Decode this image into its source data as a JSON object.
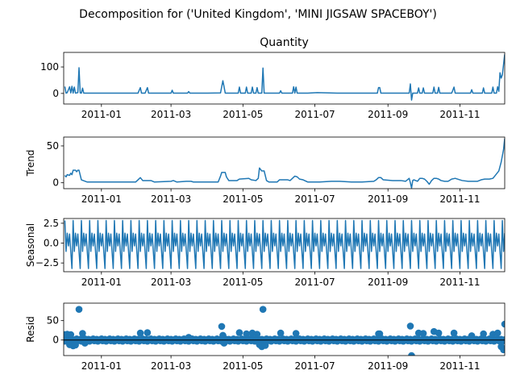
{
  "figure_title": "Decomposition for ('United Kingdom', 'MINI JIGSAW SPACEBOY')",
  "colors": {
    "line": "#1f77b4",
    "marker": "#1f77b4",
    "axis": "#000000",
    "background": "#ffffff",
    "zero_line": "#000000"
  },
  "chart_data": [
    {
      "type": "line",
      "panel": "observed",
      "title": "Quantity",
      "ylabel": "",
      "xlim": [
        "2011-11-30",
        "2011-12-09"
      ],
      "ylim": [
        -40,
        155
      ],
      "yticks": [
        0,
        100
      ],
      "xticks": [
        "2011-01",
        "2011-03",
        "2011-05",
        "2011-07",
        "2011-09",
        "2011-11"
      ],
      "grid": false,
      "points": [
        [
          "2010-12-01",
          26
        ],
        [
          "2010-12-02",
          1
        ],
        [
          "2010-12-03",
          3
        ],
        [
          "2010-12-05",
          25
        ],
        [
          "2010-12-06",
          2
        ],
        [
          "2010-12-07",
          27
        ],
        [
          "2010-12-08",
          1
        ],
        [
          "2010-12-09",
          24
        ],
        [
          "2010-12-10",
          1
        ],
        [
          "2010-12-12",
          3
        ],
        [
          "2010-12-13",
          97
        ],
        [
          "2010-12-14",
          2
        ],
        [
          "2010-12-15",
          1
        ],
        [
          "2010-12-16",
          20
        ],
        [
          "2010-12-17",
          1
        ],
        [
          "2010-12-20",
          1
        ],
        [
          "2011-01-04",
          1
        ],
        [
          "2011-01-10",
          1
        ],
        [
          "2011-01-20",
          1
        ],
        [
          "2011-02-01",
          1
        ],
        [
          "2011-02-03",
          22
        ],
        [
          "2011-02-04",
          1
        ],
        [
          "2011-02-07",
          1
        ],
        [
          "2011-02-09",
          22
        ],
        [
          "2011-02-10",
          1
        ],
        [
          "2011-02-20",
          1
        ],
        [
          "2011-03-01",
          1
        ],
        [
          "2011-03-02",
          12
        ],
        [
          "2011-03-03",
          1
        ],
        [
          "2011-03-15",
          1
        ],
        [
          "2011-03-16",
          7
        ],
        [
          "2011-03-17",
          1
        ],
        [
          "2011-04-01",
          1
        ],
        [
          "2011-04-12",
          2
        ],
        [
          "2011-04-13",
          25
        ],
        [
          "2011-04-14",
          48
        ],
        [
          "2011-04-15",
          25
        ],
        [
          "2011-04-16",
          1
        ],
        [
          "2011-04-20",
          1
        ],
        [
          "2011-04-27",
          1
        ],
        [
          "2011-04-28",
          24
        ],
        [
          "2011-04-29",
          1
        ],
        [
          "2011-05-03",
          1
        ],
        [
          "2011-05-04",
          24
        ],
        [
          "2011-05-05",
          1
        ],
        [
          "2011-05-08",
          1
        ],
        [
          "2011-05-09",
          24
        ],
        [
          "2011-05-10",
          1
        ],
        [
          "2011-05-12",
          1
        ],
        [
          "2011-05-13",
          22
        ],
        [
          "2011-05-14",
          1
        ],
        [
          "2011-05-17",
          1
        ],
        [
          "2011-05-18",
          96
        ],
        [
          "2011-05-19",
          1
        ],
        [
          "2011-05-20",
          1
        ],
        [
          "2011-06-01",
          1
        ],
        [
          "2011-06-02",
          10
        ],
        [
          "2011-06-03",
          1
        ],
        [
          "2011-06-12",
          1
        ],
        [
          "2011-06-13",
          25
        ],
        [
          "2011-06-14",
          1
        ],
        [
          "2011-06-15",
          24
        ],
        [
          "2011-06-16",
          1
        ],
        [
          "2011-06-25",
          1
        ],
        [
          "2011-07-03",
          3
        ],
        [
          "2011-07-20",
          1
        ],
        [
          "2011-08-10",
          1
        ],
        [
          "2011-08-23",
          1
        ],
        [
          "2011-08-24",
          22
        ],
        [
          "2011-08-25",
          22
        ],
        [
          "2011-08-26",
          1
        ],
        [
          "2011-09-10",
          1
        ],
        [
          "2011-09-19",
          1
        ],
        [
          "2011-09-20",
          36
        ],
        [
          "2011-09-21",
          -25
        ],
        [
          "2011-09-22",
          1
        ],
        [
          "2011-09-26",
          1
        ],
        [
          "2011-09-27",
          21
        ],
        [
          "2011-09-28",
          1
        ],
        [
          "2011-09-30",
          1
        ],
        [
          "2011-10-01",
          21
        ],
        [
          "2011-10-02",
          1
        ],
        [
          "2011-10-09",
          1
        ],
        [
          "2011-10-10",
          24
        ],
        [
          "2011-10-11",
          1
        ],
        [
          "2011-10-13",
          1
        ],
        [
          "2011-10-14",
          23
        ],
        [
          "2011-10-15",
          1
        ],
        [
          "2011-10-25",
          1
        ],
        [
          "2011-10-26",
          12
        ],
        [
          "2011-10-27",
          24
        ],
        [
          "2011-10-28",
          1
        ],
        [
          "2011-11-10",
          1
        ],
        [
          "2011-11-11",
          14
        ],
        [
          "2011-11-12",
          1
        ],
        [
          "2011-11-20",
          1
        ],
        [
          "2011-11-21",
          21
        ],
        [
          "2011-11-22",
          1
        ],
        [
          "2011-11-28",
          1
        ],
        [
          "2011-11-29",
          24
        ],
        [
          "2011-11-30",
          1
        ],
        [
          "2011-12-02",
          1
        ],
        [
          "2011-12-03",
          25
        ],
        [
          "2011-12-04",
          8
        ],
        [
          "2011-12-05",
          78
        ],
        [
          "2011-12-06",
          58
        ],
        [
          "2011-12-07",
          70
        ],
        [
          "2011-12-09",
          148
        ]
      ]
    },
    {
      "type": "line",
      "panel": "trend",
      "title": "",
      "ylabel": "Trend",
      "xlim": [
        "2010-11-30",
        "2011-12-09"
      ],
      "ylim": [
        -8,
        62
      ],
      "yticks": [
        0,
        50
      ],
      "xticks": [
        "2011-01",
        "2011-03",
        "2011-05",
        "2011-07",
        "2011-09",
        "2011-11"
      ],
      "grid": false,
      "points": [
        [
          "2010-12-01",
          10
        ],
        [
          "2010-12-02",
          8
        ],
        [
          "2010-12-03",
          11
        ],
        [
          "2010-12-05",
          10
        ],
        [
          "2010-12-06",
          13
        ],
        [
          "2010-12-07",
          11
        ],
        [
          "2010-12-08",
          17
        ],
        [
          "2010-12-10",
          17
        ],
        [
          "2010-12-11",
          15
        ],
        [
          "2010-12-12",
          17
        ],
        [
          "2010-12-13",
          17
        ],
        [
          "2010-12-15",
          4
        ],
        [
          "2010-12-20",
          1
        ],
        [
          "2011-01-30",
          1
        ],
        [
          "2011-02-01",
          4
        ],
        [
          "2011-02-03",
          7
        ],
        [
          "2011-02-05",
          3
        ],
        [
          "2011-02-12",
          3
        ],
        [
          "2011-02-15",
          1
        ],
        [
          "2011-03-01",
          2
        ],
        [
          "2011-03-03",
          3
        ],
        [
          "2011-03-06",
          1
        ],
        [
          "2011-03-14",
          2
        ],
        [
          "2011-03-18",
          2
        ],
        [
          "2011-03-20",
          1
        ],
        [
          "2011-04-10",
          1
        ],
        [
          "2011-04-12",
          9
        ],
        [
          "2011-04-13",
          14
        ],
        [
          "2011-04-16",
          14
        ],
        [
          "2011-04-17",
          8
        ],
        [
          "2011-04-19",
          3
        ],
        [
          "2011-04-26",
          3
        ],
        [
          "2011-04-28",
          5
        ],
        [
          "2011-05-06",
          6
        ],
        [
          "2011-05-08",
          4
        ],
        [
          "2011-05-12",
          3
        ],
        [
          "2011-05-14",
          6
        ],
        [
          "2011-05-15",
          20
        ],
        [
          "2011-05-17",
          16
        ],
        [
          "2011-05-19",
          16
        ],
        [
          "2011-05-21",
          3
        ],
        [
          "2011-05-23",
          1
        ],
        [
          "2011-05-30",
          1
        ],
        [
          "2011-06-01",
          4
        ],
        [
          "2011-06-08",
          4
        ],
        [
          "2011-06-10",
          3
        ],
        [
          "2011-06-12",
          6
        ],
        [
          "2011-06-14",
          9
        ],
        [
          "2011-06-16",
          8
        ],
        [
          "2011-06-18",
          5
        ],
        [
          "2011-06-21",
          4
        ],
        [
          "2011-06-25",
          1
        ],
        [
          "2011-07-05",
          1
        ],
        [
          "2011-07-15",
          2
        ],
        [
          "2011-07-22",
          2
        ],
        [
          "2011-08-01",
          1
        ],
        [
          "2011-08-10",
          1
        ],
        [
          "2011-08-20",
          2
        ],
        [
          "2011-08-22",
          4
        ],
        [
          "2011-08-24",
          7
        ],
        [
          "2011-08-26",
          7
        ],
        [
          "2011-08-28",
          4
        ],
        [
          "2011-09-05",
          3
        ],
        [
          "2011-09-12",
          3
        ],
        [
          "2011-09-16",
          2
        ],
        [
          "2011-09-19",
          6
        ],
        [
          "2011-09-20",
          0
        ],
        [
          "2011-09-21",
          -7
        ],
        [
          "2011-09-22",
          3
        ],
        [
          "2011-09-23",
          4
        ],
        [
          "2011-09-26",
          2
        ],
        [
          "2011-09-28",
          6
        ],
        [
          "2011-09-30",
          6
        ],
        [
          "2011-10-02",
          5
        ],
        [
          "2011-10-04",
          2
        ],
        [
          "2011-10-06",
          -2
        ],
        [
          "2011-10-08",
          3
        ],
        [
          "2011-10-10",
          6
        ],
        [
          "2011-10-12",
          6
        ],
        [
          "2011-10-14",
          5
        ],
        [
          "2011-10-16",
          3
        ],
        [
          "2011-10-19",
          2
        ],
        [
          "2011-10-22",
          2
        ],
        [
          "2011-10-25",
          5
        ],
        [
          "2011-10-28",
          6
        ],
        [
          "2011-11-01",
          4
        ],
        [
          "2011-11-03",
          3
        ],
        [
          "2011-11-08",
          2
        ],
        [
          "2011-11-12",
          2
        ],
        [
          "2011-11-16",
          2
        ],
        [
          "2011-11-19",
          4
        ],
        [
          "2011-11-22",
          5
        ],
        [
          "2011-11-26",
          5
        ],
        [
          "2011-11-29",
          6
        ],
        [
          "2011-12-01",
          10
        ],
        [
          "2011-12-04",
          16
        ],
        [
          "2011-12-06",
          28
        ],
        [
          "2011-12-08",
          45
        ],
        [
          "2011-12-09",
          60
        ]
      ]
    },
    {
      "type": "line",
      "panel": "seasonal",
      "title": "",
      "ylabel": "Seasonal",
      "xlim": [
        "2010-11-30",
        "2011-12-09"
      ],
      "ylim": [
        -3.6,
        3.1
      ],
      "yticks": [
        -2.5,
        0.0,
        2.5
      ],
      "xticks": [
        "2011-01",
        "2011-03",
        "2011-05",
        "2011-07",
        "2011-09",
        "2011-11"
      ],
      "grid": false,
      "period_days": 7,
      "pattern": [
        2.85,
        -1.05,
        1.25,
        -0.35,
        1.15,
        -1.05,
        -3.2
      ]
    },
    {
      "type": "scatter",
      "panel": "resid",
      "title": "",
      "ylabel": "Resid",
      "xlim": [
        "2010-11-30",
        "2011-12-09"
      ],
      "ylim": [
        -40,
        95
      ],
      "yticks": [
        0,
        50
      ],
      "xticks": [
        "2011-01",
        "2011-03",
        "2011-05",
        "2011-07",
        "2011-09",
        "2011-11"
      ],
      "grid": false,
      "zero_line": true,
      "outliers": [
        [
          "2010-12-01",
          14
        ],
        [
          "2010-12-03",
          15
        ],
        [
          "2010-12-05",
          -12
        ],
        [
          "2010-12-06",
          14
        ],
        [
          "2010-12-08",
          -15
        ],
        [
          "2010-12-10",
          -13
        ],
        [
          "2010-12-13",
          79
        ],
        [
          "2010-12-16",
          17
        ],
        [
          "2010-12-18",
          -8
        ],
        [
          "2011-02-03",
          18
        ],
        [
          "2011-02-09",
          19
        ],
        [
          "2011-03-16",
          7
        ],
        [
          "2011-04-13",
          35
        ],
        [
          "2011-04-14",
          12
        ],
        [
          "2011-04-15",
          -8
        ],
        [
          "2011-04-28",
          19
        ],
        [
          "2011-05-04",
          16
        ],
        [
          "2011-05-09",
          18
        ],
        [
          "2011-05-13",
          15
        ],
        [
          "2011-05-15",
          -12
        ],
        [
          "2011-05-17",
          -17
        ],
        [
          "2011-05-18",
          79
        ],
        [
          "2011-05-20",
          -14
        ],
        [
          "2011-06-02",
          18
        ],
        [
          "2011-06-15",
          17
        ],
        [
          "2011-08-24",
          16
        ],
        [
          "2011-08-25",
          16
        ],
        [
          "2011-09-20",
          36
        ],
        [
          "2011-09-21",
          -40
        ],
        [
          "2011-09-27",
          18
        ],
        [
          "2011-10-01",
          17
        ],
        [
          "2011-10-10",
          22
        ],
        [
          "2011-10-14",
          18
        ],
        [
          "2011-10-27",
          18
        ],
        [
          "2011-11-11",
          11
        ],
        [
          "2011-11-21",
          16
        ],
        [
          "2011-11-29",
          15
        ],
        [
          "2011-12-03",
          18
        ],
        [
          "2011-12-06",
          -17
        ],
        [
          "2011-12-08",
          -25
        ],
        [
          "2011-12-09",
          41
        ]
      ]
    }
  ]
}
